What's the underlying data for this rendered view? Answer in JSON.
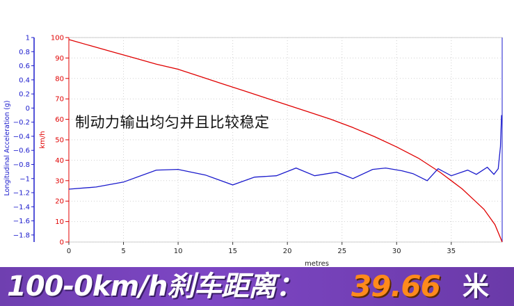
{
  "chart_data": {
    "type": "line",
    "xlabel": "metres",
    "ylabel_right_axis": "km/h",
    "ylabel_left_axis": "Longitudinal Acceleration (g)",
    "xlim": [
      0,
      39.66
    ],
    "x_ticks": [
      0,
      5,
      10,
      15,
      20,
      25,
      30,
      35
    ],
    "speed_axis": {
      "range": [
        0,
        100
      ],
      "ticks": [
        0,
        10,
        20,
        30,
        40,
        50,
        60,
        70,
        80,
        90,
        100
      ],
      "color": "#e00000"
    },
    "accel_axis": {
      "range": [
        -1.9,
        1
      ],
      "ticks": [
        1,
        0.8,
        0.6,
        0.4,
        0.2,
        0,
        -0.2,
        -0.4,
        -0.6,
        -0.8,
        -1,
        -1.2,
        -1.4,
        -1.6,
        -1.8
      ],
      "color": "#1a1acc"
    },
    "grid": true,
    "series": [
      {
        "name": "",
        "axis": "speed",
        "color": "#e00000",
        "x": [
          0,
          2,
          4,
          6,
          8,
          10,
          12,
          14,
          16,
          18,
          20,
          22,
          24,
          26,
          28,
          30,
          32,
          34,
          35,
          36,
          37,
          38,
          39,
          39.66
        ],
        "y": [
          99,
          96,
          93,
          90,
          87,
          84.5,
          81,
          77.5,
          74,
          70.5,
          67,
          63.5,
          60,
          56,
          51.5,
          46.5,
          41,
          34,
          30,
          26,
          21,
          16,
          8.5,
          0
        ]
      },
      {
        "name": "",
        "axis": "accel",
        "color": "#1a1acc",
        "x": [
          0,
          2.5,
          5,
          8,
          10,
          12.5,
          15,
          17,
          19,
          20.8,
          22.5,
          24.5,
          26,
          27.8,
          29,
          30.5,
          31.5,
          32.8,
          33.8,
          35,
          36.5,
          37.3,
          38.3,
          38.9,
          39.3,
          39.5,
          39.6
        ],
        "y": [
          -1.15,
          -1.12,
          -1.05,
          -0.88,
          -0.87,
          -0.95,
          -1.09,
          -0.98,
          -0.96,
          -0.85,
          -0.96,
          -0.91,
          -1.0,
          -0.87,
          -0.85,
          -0.89,
          -0.93,
          -1.03,
          -0.86,
          -0.96,
          -0.88,
          -0.94,
          -0.84,
          -0.94,
          -0.86,
          -0.55,
          -0.1
        ]
      }
    ]
  },
  "annotation": "制动力输出均匀并且比较稳定",
  "banner": {
    "label": "100-0km/h刹车距离：",
    "value": "39.66",
    "unit": "米"
  }
}
